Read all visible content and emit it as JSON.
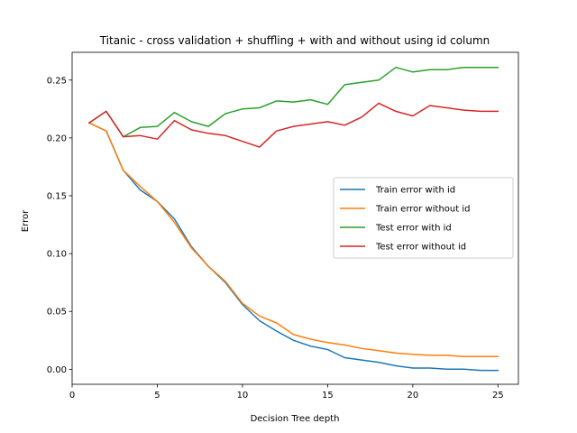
{
  "chart_data": {
    "type": "line",
    "title": "Titanic - cross validation + shuffling + with and without using id column",
    "xlabel": "Decision Tree depth",
    "ylabel": "Error",
    "xlim": [
      0,
      26.2
    ],
    "ylim": [
      -0.013,
      0.274
    ],
    "x_ticks": [
      0,
      5,
      10,
      15,
      20,
      25
    ],
    "y_ticks": [
      0.0,
      0.05,
      0.1,
      0.15,
      0.2,
      0.25
    ],
    "x_tick_labels": [
      "0",
      "5",
      "10",
      "15",
      "20",
      "25"
    ],
    "y_tick_labels": [
      "0.00",
      "0.05",
      "0.10",
      "0.15",
      "0.20",
      "0.25"
    ],
    "grid": false,
    "legend_position": "center-right",
    "x": [
      1,
      2,
      3,
      4,
      5,
      6,
      7,
      8,
      9,
      10,
      11,
      12,
      13,
      14,
      15,
      16,
      17,
      18,
      19,
      20,
      21,
      22,
      23,
      24,
      25
    ],
    "series": [
      {
        "name": "Train error with id",
        "color": "#1f77b4",
        "values": [
          0.213,
          0.206,
          0.172,
          0.155,
          0.145,
          0.13,
          0.106,
          0.089,
          0.075,
          0.056,
          0.042,
          0.033,
          0.025,
          0.02,
          0.017,
          0.01,
          0.008,
          0.006,
          0.003,
          0.001,
          0.001,
          0.0,
          0.0,
          -0.001,
          -0.001
        ]
      },
      {
        "name": "Train error without id",
        "color": "#ff7f0e",
        "values": [
          0.213,
          0.206,
          0.172,
          0.158,
          0.145,
          0.127,
          0.105,
          0.089,
          0.076,
          0.057,
          0.046,
          0.04,
          0.03,
          0.026,
          0.023,
          0.021,
          0.018,
          0.016,
          0.014,
          0.013,
          0.012,
          0.012,
          0.011,
          0.011,
          0.011
        ]
      },
      {
        "name": "Test error with id",
        "color": "#2ca02c",
        "values": [
          0.213,
          0.223,
          0.201,
          0.209,
          0.21,
          0.222,
          0.214,
          0.21,
          0.221,
          0.225,
          0.226,
          0.232,
          0.231,
          0.233,
          0.229,
          0.246,
          0.248,
          0.25,
          0.261,
          0.257,
          0.259,
          0.259,
          0.261,
          0.261,
          0.261
        ]
      },
      {
        "name": "Test error without id",
        "color": "#d62728",
        "values": [
          0.213,
          0.223,
          0.201,
          0.202,
          0.199,
          0.215,
          0.207,
          0.204,
          0.202,
          0.197,
          0.192,
          0.206,
          0.21,
          0.212,
          0.214,
          0.211,
          0.218,
          0.23,
          0.223,
          0.219,
          0.228,
          0.226,
          0.224,
          0.223,
          0.223
        ]
      }
    ]
  }
}
